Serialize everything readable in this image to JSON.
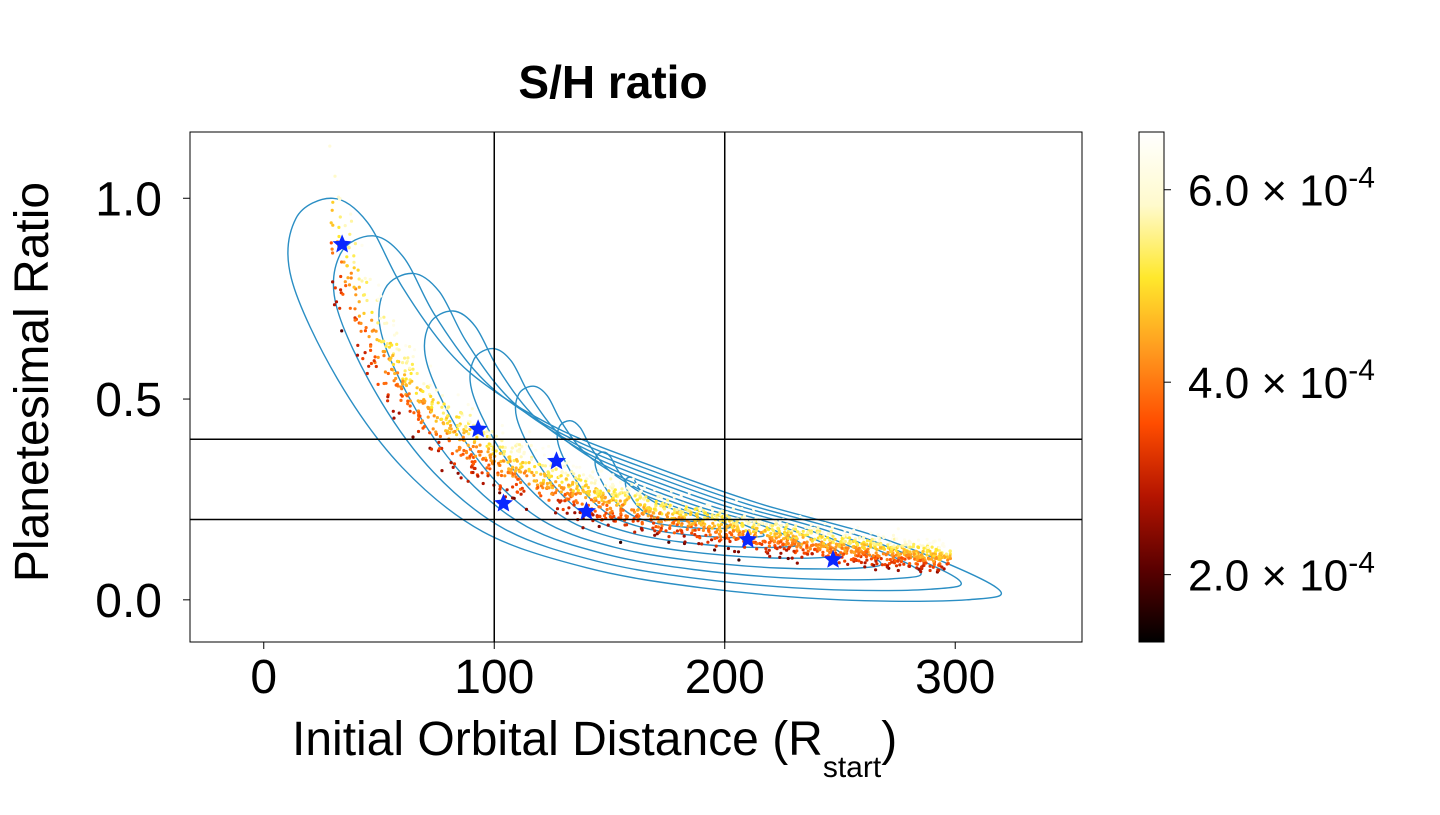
{
  "chart_data": {
    "type": "scatter",
    "title": "S/H ratio",
    "xlabel": "Initial Orbital Distance (R",
    "xlabel_sub": "start",
    "xlabel_close": ")",
    "ylabel": "Planetesimal Ratio",
    "xlim": [
      -32,
      355
    ],
    "ylim": [
      -0.105,
      1.165
    ],
    "xticks": [
      0,
      100,
      200,
      300
    ],
    "xtick_labels": [
      "0",
      "100",
      "200",
      "300"
    ],
    "yticks": [
      0.0,
      0.5,
      1.0
    ],
    "ytick_labels": [
      "0.0",
      "0.5",
      "1.0"
    ],
    "reference_lines": {
      "vertical": [
        100,
        200
      ],
      "horizontal": [
        0.2,
        0.4
      ]
    },
    "colorbar": {
      "colormap": "afmhot",
      "range": [
        0.00013,
        0.00066
      ],
      "tick_values": [
        0.0002,
        0.0004,
        0.0006
      ],
      "tick_mantissas": [
        "2.0",
        "4.0",
        "6.0"
      ],
      "times_symbol": "×",
      "tick_base": "10",
      "tick_exponent": "-4"
    },
    "colormap_stops": [
      "#000000",
      "#5a0000",
      "#b41400",
      "#ff4d00",
      "#ff9a1f",
      "#ffe82c",
      "#fffacd",
      "#ffffff"
    ],
    "marker_color": "#0a28ff",
    "contour_color": "#2a8ec4",
    "highlighted_points": [
      {
        "x": 34,
        "y": 0.885
      },
      {
        "x": 93,
        "y": 0.425
      },
      {
        "x": 127,
        "y": 0.345
      },
      {
        "x": 104,
        "y": 0.24
      },
      {
        "x": 140,
        "y": 0.22
      },
      {
        "x": 210,
        "y": 0.15
      },
      {
        "x": 247,
        "y": 0.1
      }
    ],
    "trend_curve": [
      {
        "x": 28,
        "y": 0.98
      },
      {
        "x": 35,
        "y": 0.86
      },
      {
        "x": 42,
        "y": 0.74
      },
      {
        "x": 50,
        "y": 0.64
      },
      {
        "x": 60,
        "y": 0.55
      },
      {
        "x": 72,
        "y": 0.47
      },
      {
        "x": 85,
        "y": 0.41
      },
      {
        "x": 100,
        "y": 0.355
      },
      {
        "x": 120,
        "y": 0.3
      },
      {
        "x": 145,
        "y": 0.255
      },
      {
        "x": 175,
        "y": 0.21
      },
      {
        "x": 210,
        "y": 0.17
      },
      {
        "x": 250,
        "y": 0.135
      },
      {
        "x": 295,
        "y": 0.105
      }
    ],
    "scatter_summary": {
      "n_points": 1800,
      "x_range": [
        28,
        298
      ],
      "color_mapping": "higher ratio above the trend, lower ratio below the trend"
    },
    "contour_levels": [
      {
        "level": 1,
        "scale": 1.0,
        "offset": [
          0,
          0
        ]
      },
      {
        "level": 2,
        "scale": 0.88,
        "offset": [
          12,
          0.03
        ]
      },
      {
        "level": 3,
        "scale": 0.76,
        "offset": [
          24,
          0.05
        ]
      },
      {
        "level": 4,
        "scale": 0.64,
        "offset": [
          38,
          0.06
        ]
      },
      {
        "level": 5,
        "scale": 0.52,
        "offset": [
          52,
          0.07
        ]
      },
      {
        "level": 6,
        "scale": 0.4,
        "offset": [
          66,
          0.075
        ]
      },
      {
        "level": 7,
        "scale": 0.29,
        "offset": [
          80,
          0.08
        ]
      },
      {
        "level": 8,
        "scale": 0.19,
        "offset": [
          96,
          0.085
        ]
      },
      {
        "level": 9,
        "scale": 0.11,
        "offset": [
          110,
          0.09
        ]
      }
    ],
    "outer_contour": [
      {
        "x": 30,
        "y": 1.0
      },
      {
        "x": 45,
        "y": 0.94
      },
      {
        "x": 60,
        "y": 0.78
      },
      {
        "x": 80,
        "y": 0.62
      },
      {
        "x": 100,
        "y": 0.52
      },
      {
        "x": 130,
        "y": 0.42
      },
      {
        "x": 170,
        "y": 0.33
      },
      {
        "x": 215,
        "y": 0.24
      },
      {
        "x": 270,
        "y": 0.15
      },
      {
        "x": 318,
        "y": 0.03
      },
      {
        "x": 305,
        "y": -0.0
      },
      {
        "x": 250,
        "y": 0.0
      },
      {
        "x": 190,
        "y": 0.03
      },
      {
        "x": 140,
        "y": 0.08
      },
      {
        "x": 95,
        "y": 0.17
      },
      {
        "x": 60,
        "y": 0.33
      },
      {
        "x": 32,
        "y": 0.55
      },
      {
        "x": 12,
        "y": 0.8
      },
      {
        "x": 14,
        "y": 0.95
      }
    ]
  }
}
